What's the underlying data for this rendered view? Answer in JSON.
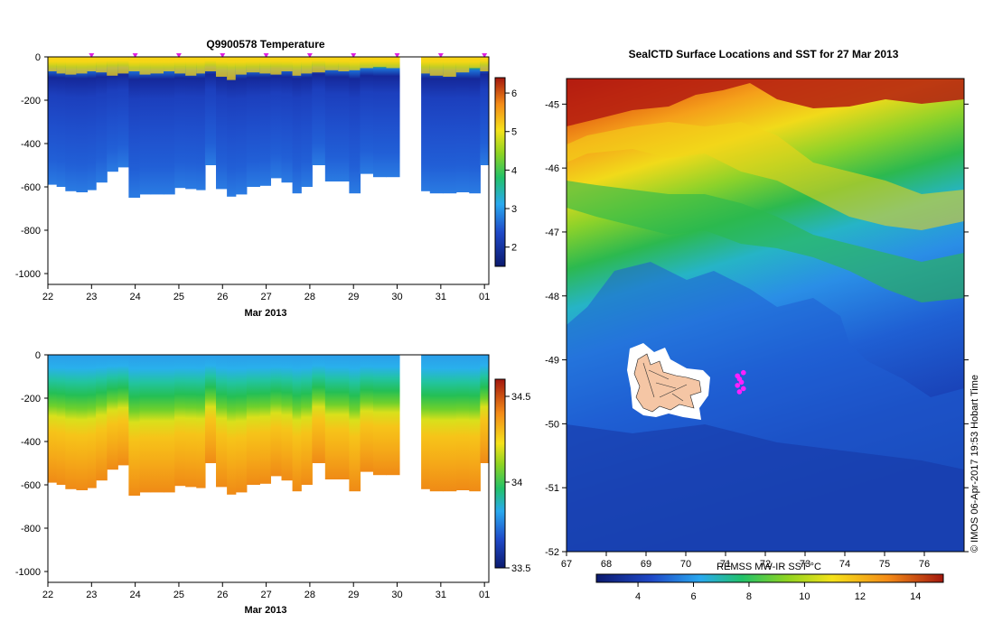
{
  "chart_data": [
    {
      "id": "temperature",
      "type": "heatmap",
      "title": "Q9900578  Temperature",
      "xlabel": "Mar 2013",
      "x_ticks": [
        "22",
        "23",
        "24",
        "25",
        "26",
        "27",
        "28",
        "29",
        "30",
        "31",
        "01"
      ],
      "xlim": [
        22,
        32.1
      ],
      "y_ticks": [
        0,
        -200,
        -400,
        -600,
        -800,
        -1000
      ],
      "ylim": [
        -1050,
        0
      ],
      "colorbar": {
        "ticks": [
          2,
          3,
          4,
          5,
          6
        ],
        "range": [
          1.5,
          6.4
        ]
      },
      "profile_times": [
        22.1,
        22.3,
        22.5,
        22.8,
        23.0,
        23.2,
        23.5,
        23.7,
        24.0,
        24.2,
        24.5,
        24.8,
        25.0,
        25.3,
        25.5,
        25.7,
        26.0,
        26.2,
        26.4,
        26.7,
        27.0,
        27.2,
        27.5,
        27.7,
        27.9,
        28.2,
        28.5,
        28.8,
        29.0,
        29.3,
        29.6,
        29.9,
        30.6,
        30.9,
        31.2,
        31.5,
        31.8,
        32.0
      ],
      "profile_max_depth": [
        -590,
        -600,
        -620,
        -625,
        -615,
        -580,
        -530,
        -510,
        -650,
        -635,
        -635,
        -635,
        -605,
        -610,
        -615,
        -500,
        -610,
        -645,
        -635,
        -600,
        -595,
        -560,
        -580,
        -630,
        -600,
        -500,
        -575,
        -575,
        -630,
        -540,
        -555,
        -555,
        -620,
        -630,
        -630,
        -625,
        -630,
        -500
      ],
      "thermocline_depth": [
        -100,
        -110,
        -115,
        -110,
        -100,
        -105,
        -120,
        -110,
        -100,
        -115,
        -110,
        -100,
        -110,
        -120,
        -110,
        -100,
        -125,
        -140,
        -115,
        -105,
        -110,
        -115,
        -100,
        -120,
        -110,
        -105,
        -95,
        -100,
        -95,
        -85,
        -80,
        -85,
        -110,
        -120,
        -125,
        -105,
        -85,
        -100
      ],
      "gap": [
        30.05,
        30.55
      ],
      "markers_at": [
        23,
        24,
        25,
        26,
        27,
        28,
        29,
        30,
        31,
        32
      ]
    },
    {
      "id": "salinity",
      "type": "heatmap",
      "title": "",
      "xlabel": "Mar 2013",
      "x_ticks": [
        "22",
        "23",
        "24",
        "25",
        "26",
        "27",
        "28",
        "29",
        "30",
        "31",
        "01"
      ],
      "xlim": [
        22,
        32.1
      ],
      "y_ticks": [
        0,
        -200,
        -400,
        -600,
        -800,
        -1000
      ],
      "ylim": [
        -1050,
        0
      ],
      "colorbar": {
        "ticks": [
          33.5,
          34,
          34.5
        ],
        "range": [
          33.5,
          34.6
        ]
      },
      "gap": [
        30.05,
        30.55
      ]
    },
    {
      "id": "sst-map",
      "type": "heatmap",
      "title": "SealCTD Surface Locations and SST for 27 Mar 2013",
      "x_ticks": [
        "67",
        "68",
        "69",
        "70",
        "71",
        "72",
        "73",
        "74",
        "75",
        "76"
      ],
      "xlim": [
        67,
        77
      ],
      "y_ticks": [
        "-45",
        "-46",
        "-47",
        "-48",
        "-49",
        "-50",
        "-51",
        "-52"
      ],
      "ylim": [
        -52,
        -44.6
      ],
      "colorbar_label": "REMSS MW-IR SST °C",
      "colorbar": {
        "ticks": [
          4,
          6,
          8,
          10,
          12,
          14
        ],
        "range": [
          2.5,
          15
        ]
      },
      "locations": [
        {
          "lon": 71.3,
          "lat": -49.25
        },
        {
          "lon": 71.35,
          "lat": -49.3
        },
        {
          "lon": 71.4,
          "lat": -49.35
        },
        {
          "lon": 71.3,
          "lat": -49.4
        },
        {
          "lon": 71.45,
          "lat": -49.45
        },
        {
          "lon": 71.35,
          "lat": -49.5
        },
        {
          "lon": 71.45,
          "lat": -49.2
        }
      ]
    }
  ],
  "credit": "© IMOS 06-Apr-2017 19:53 Hobart Time"
}
